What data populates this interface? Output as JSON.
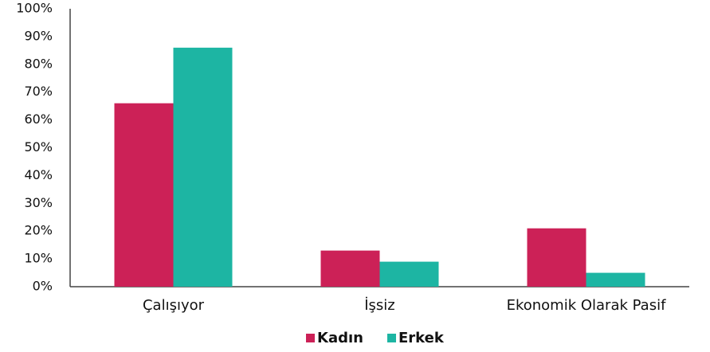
{
  "chart_data": {
    "type": "bar",
    "categories": [
      "Çalışıyor",
      "İşsiz",
      "Ekonomik Olarak Pasif"
    ],
    "series": [
      {
        "name": "Kadın",
        "color": "#cc2157",
        "values": [
          66,
          13,
          21
        ]
      },
      {
        "name": "Erkek",
        "color": "#1db5a3",
        "values": [
          86,
          9,
          5
        ]
      }
    ],
    "ylim": [
      0,
      100
    ],
    "yticks": [
      {
        "value": 0,
        "label": "0%"
      },
      {
        "value": 10,
        "label": "10%"
      },
      {
        "value": 20,
        "label": "20%"
      },
      {
        "value": 30,
        "label": "30%"
      },
      {
        "value": 40,
        "label": "40%"
      },
      {
        "value": 50,
        "label": "50%"
      },
      {
        "value": 60,
        "label": "60%"
      },
      {
        "value": 70,
        "label": "70%"
      },
      {
        "value": 80,
        "label": "80%"
      },
      {
        "value": 90,
        "label": "90%"
      },
      {
        "value": 100,
        "label": "100%"
      }
    ],
    "grid": false,
    "legend": "bottom"
  }
}
